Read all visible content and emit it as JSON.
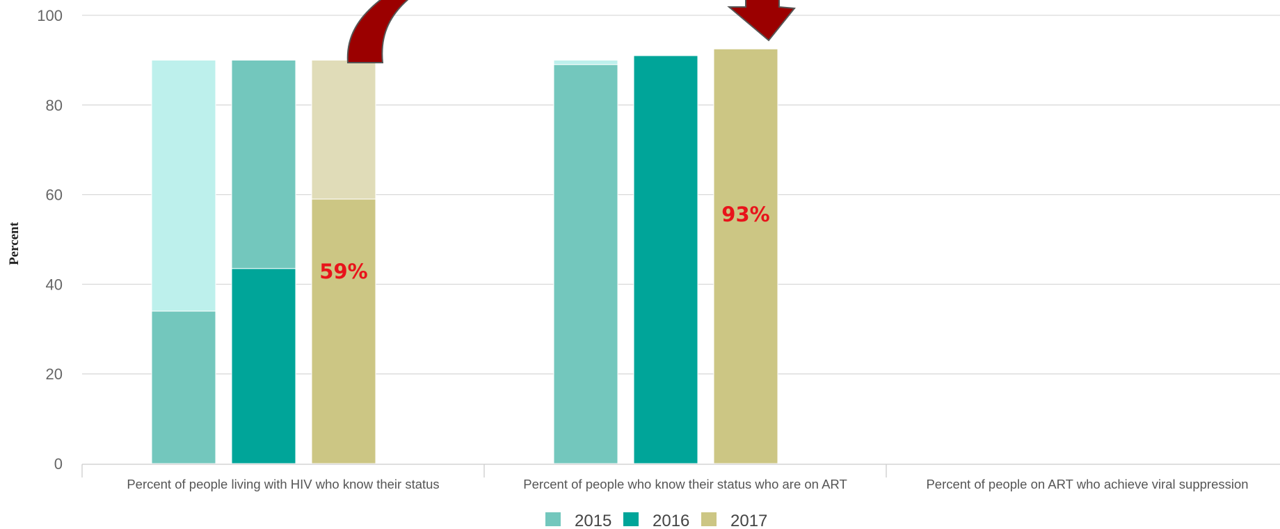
{
  "chart_data": {
    "type": "bar",
    "ylabel": "Percent",
    "ylim": [
      0,
      100
    ],
    "yticks": [
      "0",
      "20",
      "40",
      "60",
      "80",
      "100"
    ],
    "grid": true,
    "legend_position": "bottom",
    "categories": [
      "Percent of people living with HIV who know their status",
      "Percent of people who know their status who are on ART",
      "Percent of people on ART who achieve viral suppression"
    ],
    "series": [
      {
        "name": "2015",
        "color": "#73c7bd",
        "light_color": "#bdf0ec",
        "values": [
          34,
          89,
          null
        ],
        "targets": [
          90,
          90,
          null
        ]
      },
      {
        "name": "2016",
        "color": "#00a599",
        "light_color": "#73c7bd",
        "values": [
          43.5,
          91,
          null
        ],
        "targets": [
          90,
          91,
          null
        ]
      },
      {
        "name": "2017",
        "color": "#ccc684",
        "light_color": "#e0dcb8",
        "values": [
          59,
          92.5,
          null
        ],
        "targets": [
          90,
          92.5,
          null
        ]
      }
    ],
    "annotations": [
      {
        "text": "59%",
        "category_index": 0,
        "series_index": 2
      },
      {
        "text": "93%",
        "category_index": 1,
        "series_index": 2
      }
    ]
  },
  "colors": {
    "arrow": "#9b0000",
    "arrow_outline": "#555555",
    "annotation": "#e8141b"
  }
}
